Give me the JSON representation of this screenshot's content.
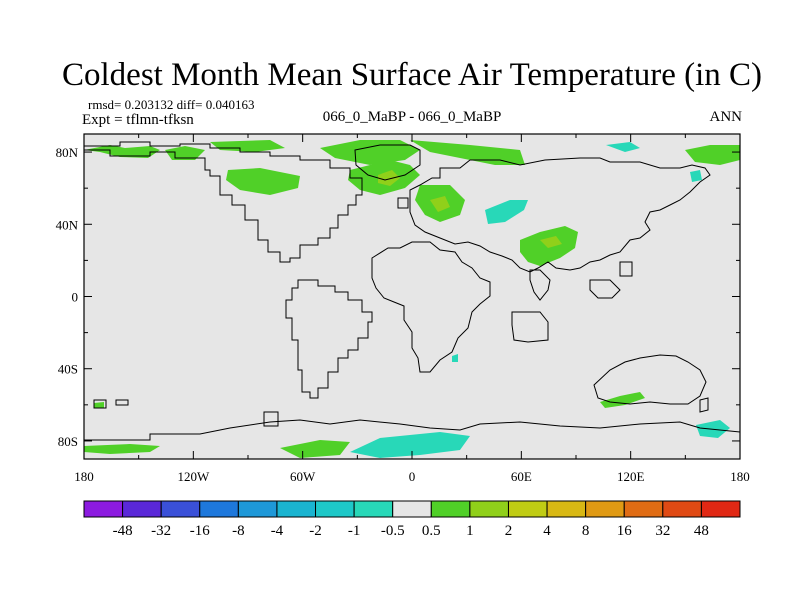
{
  "chart_data": {
    "type": "heatmap",
    "title": "Coldest Month Mean Surface Air Temperature (in C)",
    "stats_line": "rmsd= 0.203132  diff= 0.040163",
    "left_label": "Expt = tflmn-tfksn",
    "center_label": "066_0_MaBP - 066_0_MaBP",
    "right_label": "ANN",
    "x_range": [
      -180,
      180
    ],
    "y_range": [
      -90,
      90
    ],
    "x_ticks": [
      {
        "value": -180,
        "label": "180"
      },
      {
        "value": -120,
        "label": "120W"
      },
      {
        "value": -60,
        "label": "60W"
      },
      {
        "value": 0,
        "label": "0"
      },
      {
        "value": 60,
        "label": "60E"
      },
      {
        "value": 120,
        "label": "120E"
      },
      {
        "value": 180,
        "label": "180"
      }
    ],
    "y_ticks": [
      {
        "value": 80,
        "label": "80N"
      },
      {
        "value": 40,
        "label": "40N"
      },
      {
        "value": 0,
        "label": "0"
      },
      {
        "value": -40,
        "label": "40S"
      },
      {
        "value": -80,
        "label": "80S"
      }
    ],
    "colorbar": {
      "labels": [
        "-48",
        "-32",
        "-16",
        "-8",
        "-4",
        "-2",
        "-1",
        "-0.5",
        "0.5",
        "1",
        "2",
        "4",
        "8",
        "16",
        "32",
        "48"
      ],
      "colors": [
        "#8c1be0",
        "#5a28d8",
        "#3a50d8",
        "#1e78dc",
        "#1e98d8",
        "#1ab4d0",
        "#1ec8c8",
        "#28d8b8",
        "#e6e6e6",
        "#50d028",
        "#90d01a",
        "#c0cc14",
        "#d8b814",
        "#e09a14",
        "#e06c14",
        "#e04a14",
        "#e02814"
      ]
    },
    "background_value_color": "#e6e6e6",
    "anomaly_regions": [
      {
        "lon": -165,
        "lat": 80,
        "category": "0.5 to 1"
      },
      {
        "lon": -110,
        "lat": 80,
        "category": "0.5 to 1"
      },
      {
        "lon": -90,
        "lat": 70,
        "category": "0.5 to 1"
      },
      {
        "lon": -35,
        "lat": 80,
        "category": "0.5 to 1"
      },
      {
        "lon": 0,
        "lat": 83,
        "category": "0.5 to 1"
      },
      {
        "lon": 25,
        "lat": 75,
        "category": "0.5 to 1"
      },
      {
        "lon": -10,
        "lat": 65,
        "category": "0.5 to 1"
      },
      {
        "lon": 0,
        "lat": 60,
        "category": "1 to 2"
      },
      {
        "lon": 15,
        "lat": 52,
        "category": "0.5 to 1"
      },
      {
        "lon": 28,
        "lat": 52,
        "category": "1 to 2"
      },
      {
        "lon": 60,
        "lat": 46,
        "category": "-1 to -0.5"
      },
      {
        "lon": 80,
        "lat": 30,
        "category": "0.5 to 1"
      },
      {
        "lon": 82,
        "lat": 31,
        "category": "1 to 2"
      },
      {
        "lon": 140,
        "lat": 80,
        "category": "0.5 to 1"
      },
      {
        "lon": 160,
        "lat": 80,
        "category": "0.5 to 1"
      },
      {
        "lon": 120,
        "lat": 86,
        "category": "-1 to -0.5"
      },
      {
        "lon": 155,
        "lat": 68,
        "category": "-1 to -0.5"
      },
      {
        "lon": 130,
        "lat": -58,
        "category": "0.5 to 1"
      },
      {
        "lon": 160,
        "lat": -75,
        "category": "-1 to -0.5"
      },
      {
        "lon": 10,
        "lat": -82,
        "category": "-1 to -0.5"
      },
      {
        "lon": -70,
        "lat": -82,
        "category": "0.5 to 1"
      },
      {
        "lon": -150,
        "lat": -82,
        "category": "0.5 to 1"
      },
      {
        "lon": 25,
        "lat": -28,
        "category": "-1 to -0.5"
      }
    ]
  }
}
